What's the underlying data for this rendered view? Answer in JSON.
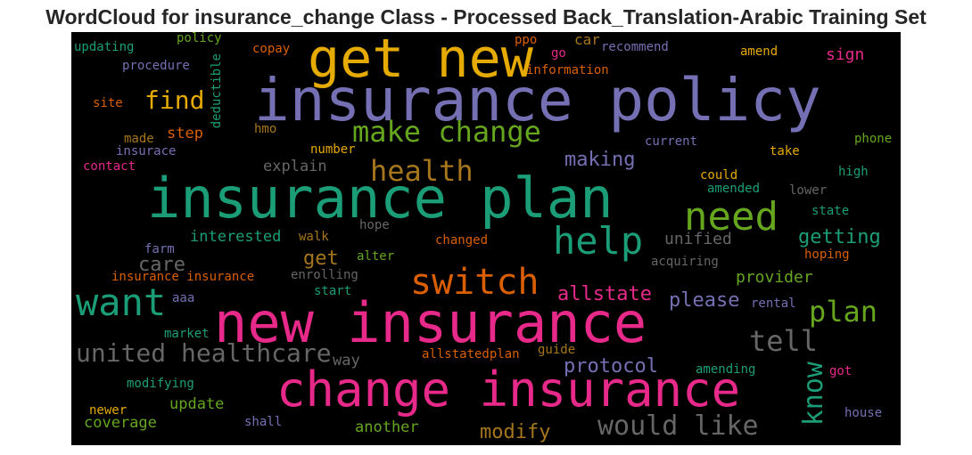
{
  "title": "WordCloud for insurance_change Class - Processed Back_Translation-Arabic Training Set",
  "colors": {
    "background": "#000000",
    "purple": "#7570b3",
    "green": "#1b9e77",
    "magenta": "#e7298a",
    "orange": "#d95f02",
    "lime": "#66a61e",
    "gold": "#e6ab02",
    "brown": "#a6761d",
    "gray": "#666666"
  },
  "chart_data": {
    "type": "wordcloud",
    "title": "WordCloud for insurance_change Class - Processed Back_Translation-Arabic Training Set",
    "words": [
      {
        "text": "insurance policy",
        "color": "#7570b3"
      },
      {
        "text": "get new",
        "color": "#e6ab02"
      },
      {
        "text": "insurance plan",
        "color": "#1b9e77"
      },
      {
        "text": "new insurance",
        "color": "#e7298a"
      },
      {
        "text": "change insurance",
        "color": "#e7298a"
      },
      {
        "text": "need",
        "color": "#66a61e"
      },
      {
        "text": "help",
        "color": "#1b9e77"
      },
      {
        "text": "want",
        "color": "#1b9e77"
      },
      {
        "text": "switch",
        "color": "#d95f02"
      },
      {
        "text": "make change",
        "color": "#66a61e"
      },
      {
        "text": "health",
        "color": "#a6761d"
      },
      {
        "text": "find",
        "color": "#e6ab02"
      },
      {
        "text": "plan",
        "color": "#66a61e"
      },
      {
        "text": "tell",
        "color": "#666666"
      },
      {
        "text": "united healthcare",
        "color": "#666666"
      },
      {
        "text": "know",
        "color": "#1b9e77"
      },
      {
        "text": "would like",
        "color": "#666666"
      },
      {
        "text": "making",
        "color": "#7570b3"
      },
      {
        "text": "getting",
        "color": "#1b9e77"
      },
      {
        "text": "allstate",
        "color": "#e7298a"
      },
      {
        "text": "please",
        "color": "#7570b3"
      },
      {
        "text": "protocol",
        "color": "#7570b3"
      },
      {
        "text": "modify",
        "color": "#a6761d"
      },
      {
        "text": "care",
        "color": "#666666"
      },
      {
        "text": "get",
        "color": "#a6761d"
      },
      {
        "text": "provider",
        "color": "#66a61e"
      },
      {
        "text": "unified",
        "color": "#666666"
      },
      {
        "text": "interested",
        "color": "#1b9e77"
      },
      {
        "text": "explain",
        "color": "#666666"
      },
      {
        "text": "update",
        "color": "#66a61e"
      },
      {
        "text": "coverage",
        "color": "#66a61e"
      },
      {
        "text": "another",
        "color": "#66a61e"
      },
      {
        "text": "sign",
        "color": "#e7298a"
      },
      {
        "text": "step",
        "color": "#d95f02"
      },
      {
        "text": "car",
        "color": "#a6761d"
      },
      {
        "text": "way",
        "color": "#666666"
      },
      {
        "text": "policy",
        "color": "#66a61e"
      },
      {
        "text": "updating",
        "color": "#1b9e77"
      },
      {
        "text": "procedure",
        "color": "#7570b3"
      },
      {
        "text": "copay",
        "color": "#d95f02"
      },
      {
        "text": "ppo",
        "color": "#d95f02"
      },
      {
        "text": "go",
        "color": "#e7298a"
      },
      {
        "text": "recommend",
        "color": "#7570b3"
      },
      {
        "text": "information",
        "color": "#d95f02"
      },
      {
        "text": "amend",
        "color": "#e6ab02"
      },
      {
        "text": "deductible",
        "color": "#1b9e77"
      },
      {
        "text": "site",
        "color": "#d95f02"
      },
      {
        "text": "made",
        "color": "#a6761d"
      },
      {
        "text": "hmo",
        "color": "#a6761d"
      },
      {
        "text": "insurace",
        "color": "#7570b3"
      },
      {
        "text": "contact",
        "color": "#e7298a"
      },
      {
        "text": "number",
        "color": "#e6ab02"
      },
      {
        "text": "current",
        "color": "#7570b3"
      },
      {
        "text": "phone",
        "color": "#66a61e"
      },
      {
        "text": "take",
        "color": "#e6ab02"
      },
      {
        "text": "could",
        "color": "#e6ab02"
      },
      {
        "text": "high",
        "color": "#1b9e77"
      },
      {
        "text": "amended",
        "color": "#1b9e77"
      },
      {
        "text": "lower",
        "color": "#666666"
      },
      {
        "text": "state",
        "color": "#1b9e77"
      },
      {
        "text": "hope",
        "color": "#666666"
      },
      {
        "text": "changed",
        "color": "#d95f02"
      },
      {
        "text": "walk",
        "color": "#a6761d"
      },
      {
        "text": "farm",
        "color": "#7570b3"
      },
      {
        "text": "alter",
        "color": "#66a61e"
      },
      {
        "text": "acquiring",
        "color": "#666666"
      },
      {
        "text": "hoping",
        "color": "#d95f02"
      },
      {
        "text": "insurance insurance",
        "color": "#d95f02"
      },
      {
        "text": "enrolling",
        "color": "#666666"
      },
      {
        "text": "start",
        "color": "#1b9e77"
      },
      {
        "text": "rental",
        "color": "#7570b3"
      },
      {
        "text": "aaa",
        "color": "#7570b3"
      },
      {
        "text": "market",
        "color": "#1b9e77"
      },
      {
        "text": "guide",
        "color": "#a6761d"
      },
      {
        "text": "allstatedplan",
        "color": "#d95f02"
      },
      {
        "text": "amending",
        "color": "#1b9e77"
      },
      {
        "text": "got",
        "color": "#e7298a"
      },
      {
        "text": "modifying",
        "color": "#1b9e77"
      },
      {
        "text": "newer",
        "color": "#e6ab02"
      },
      {
        "text": "shall",
        "color": "#7570b3"
      },
      {
        "text": "house",
        "color": "#7570b3"
      }
    ]
  }
}
